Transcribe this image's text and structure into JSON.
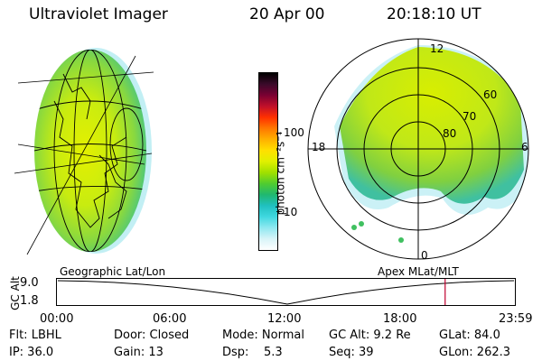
{
  "header": {
    "instrument": "Ultraviolet Imager",
    "date": "20 Apr 00",
    "time": "20:18:10 UT"
  },
  "colorbar": {
    "unit_label": "photon cm⁻²s⁻¹",
    "ticks": [
      "100",
      "10"
    ],
    "colors": [
      "#000000",
      "#3a0a2a",
      "#7a0032",
      "#c0102a",
      "#ff3000",
      "#ff7800",
      "#ffb000",
      "#ffe000",
      "#e0f000",
      "#a0e000",
      "#50cc30",
      "#20b870",
      "#20c0c0",
      "#40d8e0",
      "#90e8f0",
      "#d8f4f8",
      "#ffffff"
    ]
  },
  "polar_plot": {
    "mlt_labels": {
      "top": "12",
      "left": "18",
      "right": "6",
      "bottom": "0"
    },
    "lat_labels": [
      "60",
      "70",
      "80"
    ]
  },
  "timeline": {
    "left_title": "Geographic Lat/Lon",
    "right_title": "Apex MLat/MLT",
    "ylabel": "GC Alt",
    "y_ticks": [
      "9.0",
      "1.8"
    ],
    "x_ticks": [
      "00:00",
      "06:00",
      "12:00",
      "18:00",
      "23:59"
    ],
    "marker_time_fraction": 0.846,
    "marker_color": "#c00030"
  },
  "info": {
    "row1": {
      "flt": "Flt: LBHL",
      "door": "Door: Closed",
      "mode": "Mode: Normal",
      "gc_alt": "GC Alt: 9.2 Re",
      "glat": "GLat: 84.0"
    },
    "row2": {
      "ip": "IP: 36.0",
      "gain": "Gain: 13",
      "dsp": "Dsp:    5.3",
      "seq": "Seq: 39",
      "glon": "GLon: 262.3"
    }
  }
}
